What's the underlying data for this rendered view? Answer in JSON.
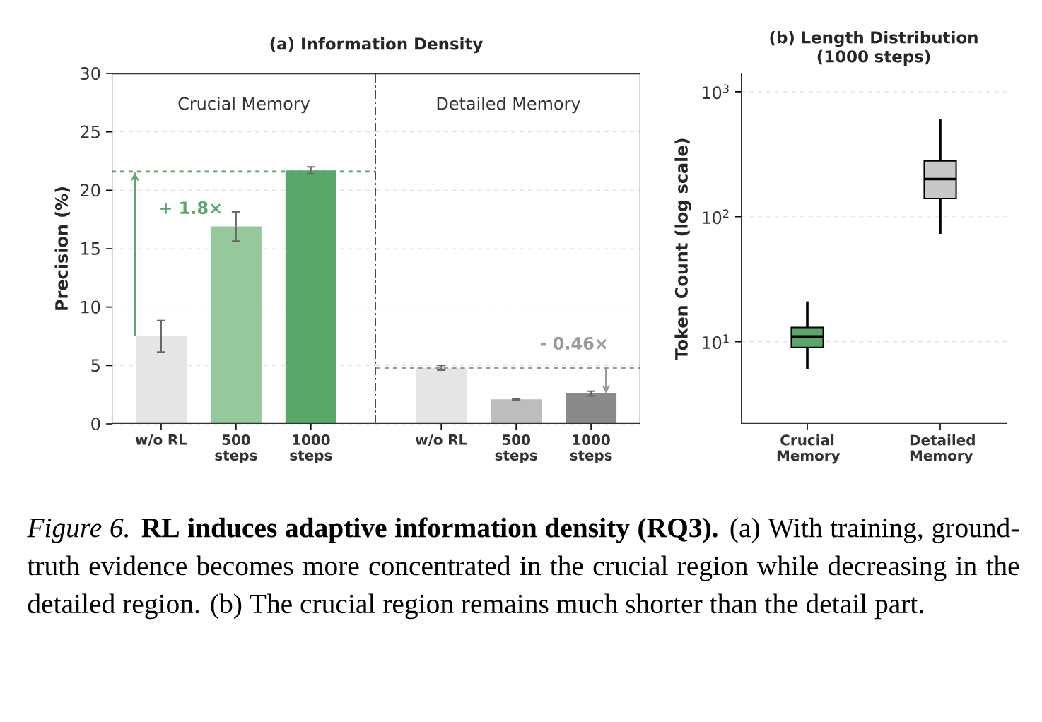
{
  "chart_data": [
    {
      "type": "bar",
      "title": "(a) Information Density",
      "subtitle": "Crucial Memory",
      "ylabel": "Precision (%)",
      "categories": [
        "w/o RL",
        "500 steps",
        "1000 steps"
      ],
      "values": [
        7.5,
        16.9,
        21.7
      ],
      "errors": [
        1.35,
        1.25,
        0.3
      ],
      "colors": [
        "#e5e5e5",
        "#95c99b",
        "#5aa869"
      ],
      "ylim": [
        0,
        30
      ],
      "yticks": [
        0,
        5,
        10,
        15,
        20,
        25,
        30
      ],
      "grid": "y",
      "ref_lines": [
        {
          "axis": "y",
          "value": 21.6,
          "color": "#5aa869",
          "line_style": "dashed"
        }
      ],
      "annotations": [
        "+ 1.8×",
        "*Figure 6.* **RL induces adaptive information density (RQ3).** (a) With training, ground-truth evidence becomes more concentrated in the crucial region while decreasing in the detailed region. (b) The crucial region remains much shorter than the detail part."
      ]
    },
    {
      "type": "bar",
      "subtitle": "Detailed Memory",
      "categories": [
        "w/o RL",
        "500 steps",
        "1000 steps"
      ],
      "values": [
        4.8,
        2.1,
        2.6
      ],
      "errors": [
        0.2,
        0.05,
        0.2
      ],
      "colors": [
        "#e5e5e5",
        "#bdbdbd",
        "#8a8a8a"
      ],
      "ylim": [
        0,
        30
      ],
      "yticks": [
        0,
        5,
        10,
        15,
        20,
        25,
        30
      ],
      "tick_labels": "x",
      "grid": "y",
      "ref_lines": [
        {
          "axis": "y",
          "value": 4.8,
          "color": "#999999",
          "line_style": "dashed"
        }
      ],
      "annotations": [
        "- 0.46×"
      ]
    },
    {
      "type": "box",
      "title": "(b) Length Distribution (1000 steps)",
      "ylabel": "Token Count (log scale)",
      "categories": [
        "Crucial Memory",
        "Detailed Memory"
      ],
      "boxes": [
        {
          "low": 6,
          "q1": 9,
          "median": 11,
          "q3": 13,
          "high": 21
        },
        {
          "low": 73,
          "q1": 140,
          "median": 200,
          "q3": 280,
          "high": 600
        }
      ],
      "colors": [
        "#5aa869",
        "#c8c8c8"
      ],
      "log": "y",
      "ylim": [
        2.2,
        1400
      ],
      "yticks": [
        {
          "value": 10,
          "label": "10$^{1}$"
        },
        {
          "value": 100,
          "label": "10$^{2}$"
        },
        {
          "value": 1000,
          "label": "10$^{3}$"
        }
      ],
      "grid": "y"
    }
  ]
}
